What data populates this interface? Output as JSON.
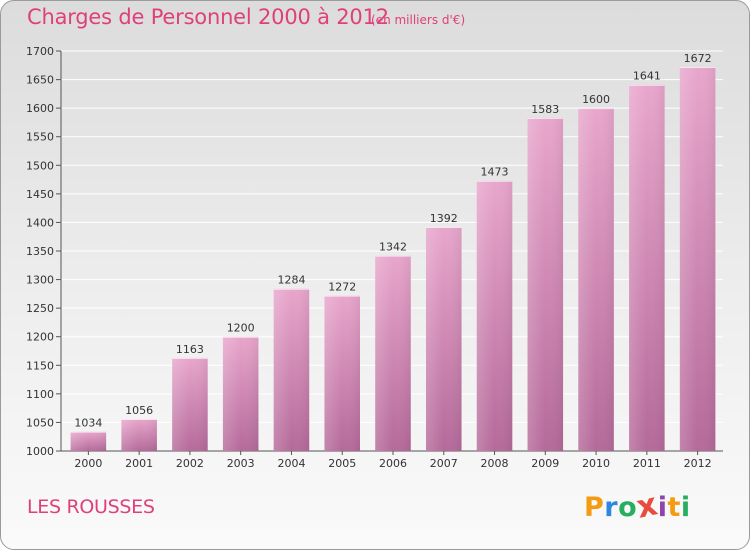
{
  "chart_data": {
    "type": "bar",
    "title": "Charges de Personnel 2000 à 2012",
    "unit_label": "(en milliers d'€)",
    "xlabel": "",
    "ylabel": "",
    "categories": [
      "2000",
      "2001",
      "2002",
      "2003",
      "2004",
      "2005",
      "2006",
      "2007",
      "2008",
      "2009",
      "2010",
      "2011",
      "2012"
    ],
    "values": [
      1034,
      1056,
      1163,
      1200,
      1284,
      1272,
      1342,
      1392,
      1473,
      1583,
      1600,
      1641,
      1672
    ],
    "ylim": [
      1000,
      1700
    ],
    "yticks": [
      1000,
      1050,
      1100,
      1150,
      1200,
      1250,
      1300,
      1350,
      1400,
      1450,
      1500,
      1550,
      1600,
      1650,
      1700
    ],
    "grid": true,
    "legend": "none"
  },
  "commune_name": "LES ROUSSES",
  "logo": {
    "letters": [
      "P",
      "r",
      "o",
      "x",
      "i",
      "t",
      "i"
    ],
    "colors": [
      "#f39c12",
      "#2e86de",
      "#27ae60",
      "#e74c3c",
      "#8e44ad",
      "#f39c12",
      "#27ae60"
    ]
  },
  "colors": {
    "accent": "#e0407a",
    "bar_top": "#e8a6cc",
    "bar_bottom": "#b56a9a",
    "grid": "#ffffff"
  }
}
